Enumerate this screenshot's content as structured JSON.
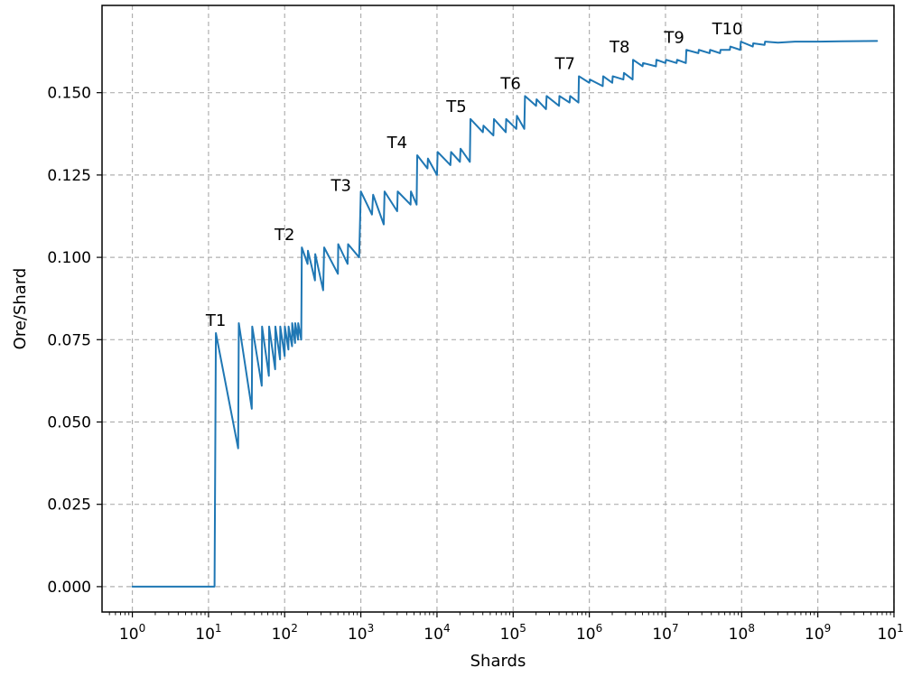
{
  "chart_data": {
    "type": "line",
    "title": "",
    "xlabel": "Shards",
    "ylabel": "Ore/Shard",
    "x_scale": "log",
    "xlim": [
      0.4,
      10000000000
    ],
    "ylim": [
      -0.0077,
      0.1765
    ],
    "x_ticks": [
      {
        "value": 1,
        "base": "10",
        "exp": "0"
      },
      {
        "value": 10,
        "base": "10",
        "exp": "1"
      },
      {
        "value": 100,
        "base": "10",
        "exp": "2"
      },
      {
        "value": 1000,
        "base": "10",
        "exp": "3"
      },
      {
        "value": 10000,
        "base": "10",
        "exp": "4"
      },
      {
        "value": 100000,
        "base": "10",
        "exp": "5"
      },
      {
        "value": 1000000,
        "base": "10",
        "exp": "6"
      },
      {
        "value": 10000000,
        "base": "10",
        "exp": "7"
      },
      {
        "value": 100000000,
        "base": "10",
        "exp": "8"
      },
      {
        "value": 1000000000,
        "base": "10",
        "exp": "9"
      },
      {
        "value": 10000000000,
        "base": "10",
        "exp": "10"
      }
    ],
    "y_ticks": [
      {
        "value": 0.0,
        "label": "0.000"
      },
      {
        "value": 0.025,
        "label": "0.025"
      },
      {
        "value": 0.05,
        "label": "0.050"
      },
      {
        "value": 0.075,
        "label": "0.075"
      },
      {
        "value": 0.1,
        "label": "0.100"
      },
      {
        "value": 0.125,
        "label": "0.125"
      },
      {
        "value": 0.15,
        "label": "0.150"
      }
    ],
    "grid": true,
    "series": [
      {
        "color": "#1f77b4",
        "points": [
          [
            1,
            0
          ],
          [
            12,
            0
          ],
          [
            12.5,
            0.077
          ],
          [
            24.5,
            0.042
          ],
          [
            25,
            0.08
          ],
          [
            37,
            0.054
          ],
          [
            37.5,
            0.079
          ],
          [
            50,
            0.061
          ],
          [
            50.5,
            0.079
          ],
          [
            62,
            0.064
          ],
          [
            62.5,
            0.079
          ],
          [
            75,
            0.066
          ],
          [
            75.5,
            0.079
          ],
          [
            87,
            0.069
          ],
          [
            87.5,
            0.079
          ],
          [
            100,
            0.07
          ],
          [
            100.5,
            0.079
          ],
          [
            112,
            0.072
          ],
          [
            112.5,
            0.079
          ],
          [
            125,
            0.073
          ],
          [
            125.5,
            0.08
          ],
          [
            137,
            0.074
          ],
          [
            137.5,
            0.08
          ],
          [
            150,
            0.075
          ],
          [
            150.5,
            0.08
          ],
          [
            165,
            0.075
          ],
          [
            168,
            0.103
          ],
          [
            200,
            0.098
          ],
          [
            202,
            0.102
          ],
          [
            250,
            0.093
          ],
          [
            252,
            0.101
          ],
          [
            320,
            0.09
          ],
          [
            330,
            0.103
          ],
          [
            500,
            0.095
          ],
          [
            505,
            0.104
          ],
          [
            670,
            0.098
          ],
          [
            680,
            0.104
          ],
          [
            950,
            0.1
          ],
          [
            1000,
            0.12
          ],
          [
            1400,
            0.113
          ],
          [
            1450,
            0.119
          ],
          [
            2000,
            0.11
          ],
          [
            2050,
            0.12
          ],
          [
            3000,
            0.114
          ],
          [
            3050,
            0.12
          ],
          [
            4500,
            0.116
          ],
          [
            4550,
            0.12
          ],
          [
            5400,
            0.116
          ],
          [
            5500,
            0.131
          ],
          [
            7500,
            0.127
          ],
          [
            7600,
            0.13
          ],
          [
            10000,
            0.125
          ],
          [
            10200,
            0.132
          ],
          [
            15000,
            0.128
          ],
          [
            15300,
            0.132
          ],
          [
            20000,
            0.129
          ],
          [
            20400,
            0.133
          ],
          [
            27000,
            0.129
          ],
          [
            27500,
            0.142
          ],
          [
            40000,
            0.138
          ],
          [
            40800,
            0.14
          ],
          [
            55000,
            0.137
          ],
          [
            56000,
            0.142
          ],
          [
            80000,
            0.138
          ],
          [
            81000,
            0.142
          ],
          [
            110000,
            0.139
          ],
          [
            112000,
            0.143
          ],
          [
            140000,
            0.139
          ],
          [
            143000,
            0.149
          ],
          [
            200000,
            0.146
          ],
          [
            203000,
            0.148
          ],
          [
            270000,
            0.145
          ],
          [
            275000,
            0.149
          ],
          [
            400000,
            0.146
          ],
          [
            405000,
            0.149
          ],
          [
            550000,
            0.147
          ],
          [
            560000,
            0.149
          ],
          [
            720000,
            0.147
          ],
          [
            730000,
            0.155
          ],
          [
            1000000,
            0.153
          ],
          [
            1020000,
            0.154
          ],
          [
            1500000,
            0.152
          ],
          [
            1520000,
            0.155
          ],
          [
            2000000,
            0.153
          ],
          [
            2030000,
            0.155
          ],
          [
            2800000,
            0.154
          ],
          [
            2850000,
            0.156
          ],
          [
            3700000,
            0.154
          ],
          [
            3750000,
            0.16
          ],
          [
            5000000,
            0.158
          ],
          [
            5080000,
            0.159
          ],
          [
            7500000,
            0.158
          ],
          [
            7600000,
            0.16
          ],
          [
            10000000,
            0.159
          ],
          [
            10150000,
            0.16
          ],
          [
            14000000,
            0.159
          ],
          [
            14200000,
            0.16
          ],
          [
            18500000,
            0.159
          ],
          [
            18800000,
            0.163
          ],
          [
            27000000,
            0.162
          ],
          [
            27400000,
            0.163
          ],
          [
            38000000,
            0.162
          ],
          [
            38500000,
            0.163
          ],
          [
            52000000,
            0.162
          ],
          [
            52800000,
            0.163
          ],
          [
            70000000,
            0.163
          ],
          [
            71000000,
            0.164
          ],
          [
            96000000,
            0.163
          ],
          [
            97500000,
            0.1655
          ],
          [
            140000000,
            0.164
          ],
          [
            142000000,
            0.165
          ],
          [
            200000000,
            0.1645
          ],
          [
            203000000,
            0.1655
          ],
          [
            300000000,
            0.1652
          ],
          [
            500000000,
            0.1655
          ],
          [
            1000000000,
            0.1655
          ],
          [
            2000000000,
            0.1656
          ],
          [
            6000000000,
            0.1657
          ]
        ]
      }
    ],
    "annotations": [
      {
        "text": "T1",
        "x": 12.5,
        "y": 0.077
      },
      {
        "text": "T2",
        "x": 100,
        "y": 0.103
      },
      {
        "text": "T3",
        "x": 550,
        "y": 0.118
      },
      {
        "text": "T4",
        "x": 3000,
        "y": 0.131
      },
      {
        "text": "T5",
        "x": 18000,
        "y": 0.142
      },
      {
        "text": "T6",
        "x": 93000,
        "y": 0.149
      },
      {
        "text": "T7",
        "x": 480000,
        "y": 0.155
      },
      {
        "text": "T8",
        "x": 2500000,
        "y": 0.16
      },
      {
        "text": "T9",
        "x": 13000000,
        "y": 0.163
      },
      {
        "text": "T10",
        "x": 65000000,
        "y": 0.1655
      }
    ]
  }
}
